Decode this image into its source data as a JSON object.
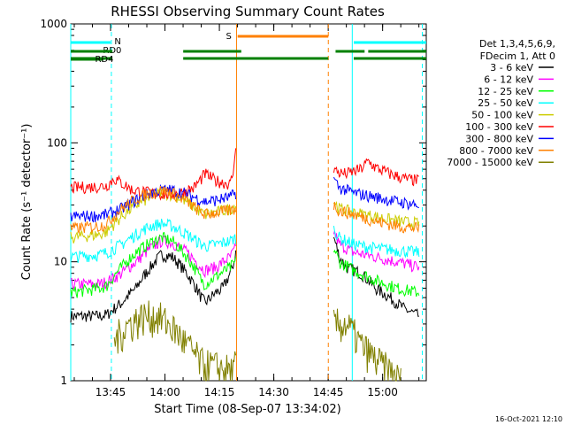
{
  "chart_data": {
    "type": "line",
    "title": "RHESSI Observing Summary Count Rates",
    "xlabel": "Start Time (08-Sep-07 13:34:02)",
    "ylabel": "Count Rate (s⁻¹ detector⁻¹)",
    "yscale": "log",
    "ylim": [
      1,
      1000
    ],
    "xlim_minutes": [
      0,
      98
    ],
    "x_unit": "minutes after 13:34:02",
    "x_ticks": [
      {
        "label": "13:45",
        "t": 10.97
      },
      {
        "label": "14:00",
        "t": 25.97
      },
      {
        "label": "14:15",
        "t": 40.97
      },
      {
        "label": "14:30",
        "t": 55.97
      },
      {
        "label": "14:45",
        "t": 70.97
      },
      {
        "label": "15:00",
        "t": 85.97
      }
    ],
    "y_ticks": [
      {
        "label": "1",
        "v": 1
      },
      {
        "label": "10",
        "v": 10
      },
      {
        "label": "100",
        "v": 100
      },
      {
        "label": "1000",
        "v": 1000
      }
    ],
    "legend_header": [
      "Det 1,3,4,5,6,9,",
      "FDecim 1, Att 0"
    ],
    "legend_placement": "right",
    "timestamp": "16-Oct-2021 12:10",
    "data_gaps": [
      [
        45.5,
        72.5
      ]
    ],
    "series": [
      {
        "name": "3 - 6 keV",
        "color": "#000000",
        "points": [
          [
            0,
            3.5
          ],
          [
            8,
            3.5
          ],
          [
            10,
            3.6
          ],
          [
            14,
            4.5
          ],
          [
            18,
            6
          ],
          [
            22,
            9
          ],
          [
            25,
            11.5
          ],
          [
            28,
            11
          ],
          [
            32,
            8
          ],
          [
            36,
            5
          ],
          [
            37,
            4.5
          ],
          [
            40,
            5.5
          ],
          [
            42,
            6
          ],
          [
            44,
            8
          ],
          [
            45,
            10
          ],
          [
            45.5,
            12
          ],
          [
            72.5,
            16
          ],
          [
            74,
            11
          ],
          [
            76,
            9
          ],
          [
            80,
            8
          ],
          [
            84,
            6
          ],
          [
            88,
            5
          ],
          [
            92,
            4
          ],
          [
            96,
            3.5
          ]
        ]
      },
      {
        "name": "6 - 12 keV",
        "color": "#ff00ff",
        "points": [
          [
            0,
            6.5
          ],
          [
            8,
            6.5
          ],
          [
            10,
            6.8
          ],
          [
            14,
            8
          ],
          [
            18,
            10
          ],
          [
            22,
            13
          ],
          [
            25,
            15
          ],
          [
            28,
            14.5
          ],
          [
            32,
            12
          ],
          [
            36,
            9
          ],
          [
            37,
            8.5
          ],
          [
            40,
            9
          ],
          [
            44,
            11
          ],
          [
            45.5,
            13
          ],
          [
            72.5,
            18
          ],
          [
            74,
            14
          ],
          [
            78,
            12
          ],
          [
            84,
            11
          ],
          [
            90,
            10
          ],
          [
            96,
            9
          ]
        ]
      },
      {
        "name": "12 - 25 keV",
        "color": "#00ff00",
        "points": [
          [
            0,
            5.5
          ],
          [
            8,
            6
          ],
          [
            10,
            6.3
          ],
          [
            14,
            9
          ],
          [
            18,
            12
          ],
          [
            22,
            14.5
          ],
          [
            25,
            16
          ],
          [
            28,
            15
          ],
          [
            32,
            11
          ],
          [
            36,
            7
          ],
          [
            37,
            6.5
          ],
          [
            40,
            7.5
          ],
          [
            44,
            9
          ],
          [
            45.5,
            10
          ],
          [
            72.5,
            13
          ],
          [
            74,
            10
          ],
          [
            78,
            8.5
          ],
          [
            84,
            7
          ],
          [
            90,
            6
          ],
          [
            96,
            5.5
          ]
        ]
      },
      {
        "name": "25 - 50 keV",
        "color": "#00ffff",
        "points": [
          [
            0,
            11
          ],
          [
            8,
            11.5
          ],
          [
            10,
            12
          ],
          [
            14,
            14
          ],
          [
            18,
            17
          ],
          [
            22,
            20
          ],
          [
            25,
            21
          ],
          [
            28,
            20
          ],
          [
            32,
            17
          ],
          [
            36,
            14
          ],
          [
            37,
            13.5
          ],
          [
            40,
            14
          ],
          [
            44,
            15
          ],
          [
            45.5,
            16
          ],
          [
            72.5,
            19
          ],
          [
            74,
            16
          ],
          [
            78,
            14
          ],
          [
            84,
            13
          ],
          [
            90,
            12.5
          ],
          [
            96,
            12
          ]
        ]
      },
      {
        "name": "50 - 100 keV",
        "color": "#cccc00",
        "points": [
          [
            0,
            16
          ],
          [
            8,
            17
          ],
          [
            10,
            18
          ],
          [
            14,
            24
          ],
          [
            18,
            30
          ],
          [
            22,
            35
          ],
          [
            25,
            38
          ],
          [
            28,
            37
          ],
          [
            32,
            32
          ],
          [
            36,
            26
          ],
          [
            37,
            25
          ],
          [
            40,
            26
          ],
          [
            44,
            28
          ],
          [
            45.5,
            30
          ],
          [
            72.5,
            32
          ],
          [
            74,
            28
          ],
          [
            78,
            26
          ],
          [
            84,
            24
          ],
          [
            90,
            22
          ],
          [
            96,
            21
          ]
        ]
      },
      {
        "name": "100 - 300 keV",
        "color": "#ff0000",
        "points": [
          [
            0,
            42
          ],
          [
            8,
            43
          ],
          [
            10,
            44
          ],
          [
            12,
            50
          ],
          [
            13,
            48
          ],
          [
            17,
            40
          ],
          [
            22,
            38
          ],
          [
            26,
            37
          ],
          [
            30,
            38
          ],
          [
            34,
            42
          ],
          [
            36,
            50
          ],
          [
            37,
            55
          ],
          [
            40,
            48
          ],
          [
            44,
            45
          ],
          [
            45,
            60
          ],
          [
            45.5,
            100
          ],
          [
            72.5,
            60
          ],
          [
            74,
            56
          ],
          [
            76,
            55
          ],
          [
            80,
            60
          ],
          [
            82,
            70
          ],
          [
            84,
            62
          ],
          [
            88,
            55
          ],
          [
            92,
            50
          ],
          [
            96,
            48
          ]
        ]
      },
      {
        "name": "300 - 800 keV",
        "color": "#0000ff",
        "points": [
          [
            0,
            24
          ],
          [
            8,
            24.5
          ],
          [
            10,
            25
          ],
          [
            14,
            28
          ],
          [
            18,
            33
          ],
          [
            22,
            38
          ],
          [
            25,
            40
          ],
          [
            28,
            40
          ],
          [
            32,
            37
          ],
          [
            36,
            33
          ],
          [
            37,
            32
          ],
          [
            40,
            33
          ],
          [
            44,
            35
          ],
          [
            45.5,
            38
          ],
          [
            72.5,
            50
          ],
          [
            74,
            42
          ],
          [
            78,
            38
          ],
          [
            84,
            35
          ],
          [
            90,
            32
          ],
          [
            96,
            30
          ]
        ]
      },
      {
        "name": "800 - 7000 keV",
        "color": "#ff8000",
        "points": [
          [
            0,
            19
          ],
          [
            8,
            20
          ],
          [
            10,
            21
          ],
          [
            14,
            28
          ],
          [
            18,
            34
          ],
          [
            22,
            38
          ],
          [
            25,
            40
          ],
          [
            28,
            38
          ],
          [
            32,
            32
          ],
          [
            36,
            26
          ],
          [
            37,
            25
          ],
          [
            40,
            26
          ],
          [
            44,
            27
          ],
          [
            45.5,
            28
          ],
          [
            72.5,
            30
          ],
          [
            74,
            27
          ],
          [
            78,
            25
          ],
          [
            84,
            22
          ],
          [
            90,
            20
          ],
          [
            96,
            19
          ]
        ]
      },
      {
        "name": "7000 - 15000 keV",
        "color": "#808000",
        "points": [
          [
            12,
            2.2
          ],
          [
            16,
            3
          ],
          [
            20,
            3.5
          ],
          [
            24,
            3.5
          ],
          [
            28,
            2.8
          ],
          [
            32,
            2
          ],
          [
            36,
            1.4
          ],
          [
            45,
            1.2
          ],
          [
            45.5,
            1.5
          ],
          [
            72.5,
            3
          ],
          [
            76,
            3
          ],
          [
            80,
            2
          ],
          [
            84,
            1.5
          ],
          [
            88,
            1.2
          ],
          [
            91,
            1
          ]
        ]
      }
    ],
    "state_bars": [
      {
        "label": "N",
        "color": "#00ffff",
        "segments": [
          [
            0,
            11
          ],
          [
            78,
            98
          ]
        ]
      },
      {
        "label": "RD0",
        "color": "#008000",
        "segments": [
          [
            0,
            9
          ]
        ]
      },
      {
        "label": "RD4",
        "color": "#008000",
        "segments": [
          [
            0,
            11.5
          ],
          [
            31,
            71
          ],
          [
            78,
            98
          ]
        ]
      },
      {
        "label": "",
        "color": "#008000",
        "segments": [
          [
            0,
            11.5
          ],
          [
            31,
            47
          ],
          [
            73,
            81
          ],
          [
            82,
            98
          ]
        ]
      },
      {
        "label": "S",
        "color": "#ff8000",
        "segments": [
          [
            46,
            71
          ]
        ]
      }
    ],
    "vlines": [
      {
        "t": 0,
        "color": "#00ffff",
        "style": "solid"
      },
      {
        "t": 11.2,
        "color": "#00ffff",
        "style": "dashed"
      },
      {
        "t": 45.7,
        "color": "#ff8000",
        "style": "solid"
      },
      {
        "t": 71.0,
        "color": "#ff8000",
        "style": "dashed"
      },
      {
        "t": 77.6,
        "color": "#00ffff",
        "style": "solid"
      },
      {
        "t": 96.9,
        "color": "#00ffff",
        "style": "dashed"
      }
    ]
  }
}
